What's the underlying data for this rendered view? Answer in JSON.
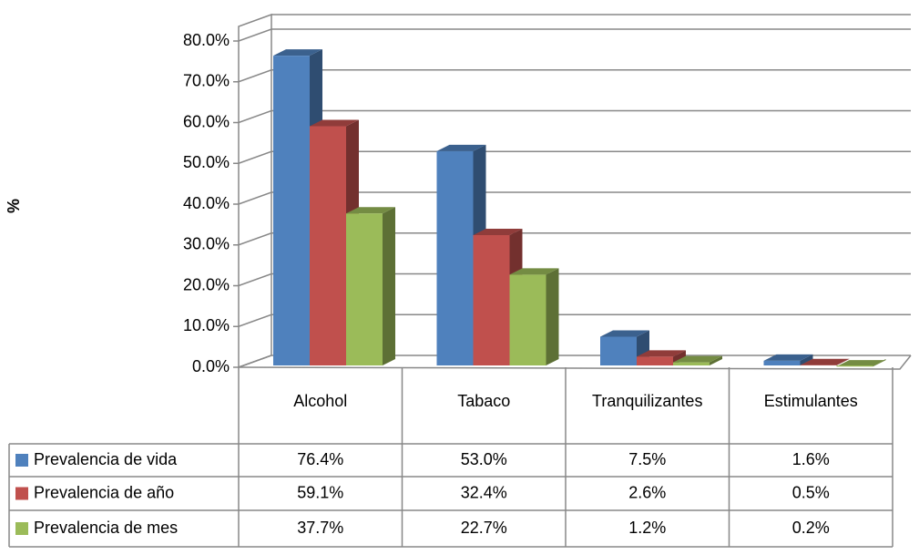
{
  "chart_data": {
    "type": "bar3d",
    "y_label": "%",
    "categories": [
      "Alcohol",
      "Tabaco",
      "Tranquilizantes",
      "Estimulantes"
    ],
    "series": [
      {
        "name": "Prevalencia de vida",
        "color": "#4f81bd",
        "values": [
          76.4,
          53.0,
          7.5,
          1.6
        ],
        "value_labels": [
          "76.4%",
          "53.0%",
          "7.5%",
          "1.6%"
        ]
      },
      {
        "name": "Prevalencia de año",
        "color": "#c0504d",
        "values": [
          59.1,
          32.4,
          2.6,
          0.5
        ],
        "value_labels": [
          "59.1%",
          "32.4%",
          "2.6%",
          "0.5%"
        ]
      },
      {
        "name": "Prevalencia de mes",
        "color": "#9bbb59",
        "values": [
          37.7,
          22.7,
          1.2,
          0.2
        ],
        "value_labels": [
          "37.7%",
          "22.7%",
          "1.2%",
          "0.2%"
        ]
      }
    ],
    "ylim": [
      0,
      80
    ],
    "yticks": [
      {
        "value": 0,
        "label": "0.0%"
      },
      {
        "value": 10,
        "label": "10.0%"
      },
      {
        "value": 20,
        "label": "20.0%"
      },
      {
        "value": 30,
        "label": "30.0%"
      },
      {
        "value": 40,
        "label": "40.0%"
      },
      {
        "value": 50,
        "label": "50.0%"
      },
      {
        "value": 60,
        "label": "60.0%"
      },
      {
        "value": 70,
        "label": "70.0%"
      },
      {
        "value": 80,
        "label": "80.0%"
      }
    ],
    "grid": true
  }
}
